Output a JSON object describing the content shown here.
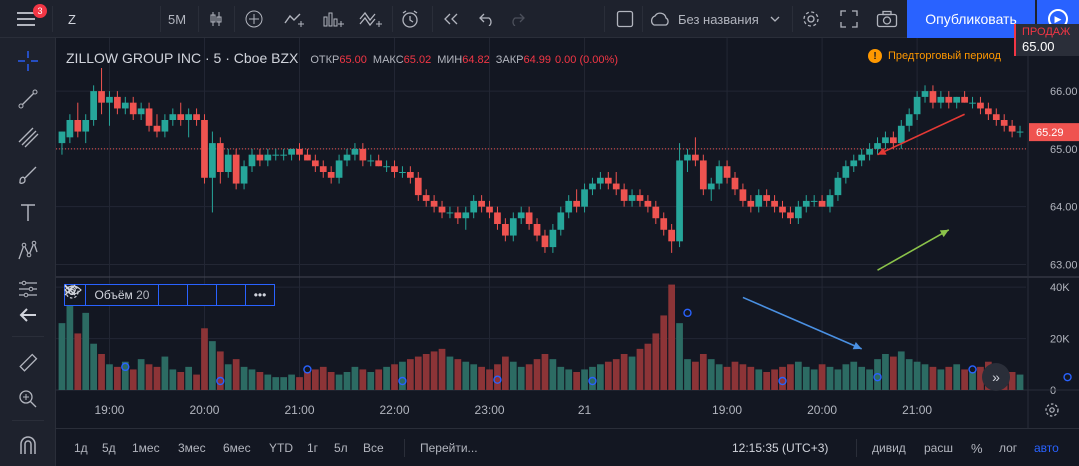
{
  "toolbar": {
    "menu_badge": "3",
    "symbol": "Z",
    "interval": "5M",
    "layout_name": "Без названия",
    "publish_label": "Опубликовать",
    "icons": [
      "menu-icon",
      "candles-icon",
      "plus-circle-icon",
      "compare-icon",
      "indicators-icon",
      "templates-icon",
      "alert-icon",
      "replay-icon",
      "undo-icon",
      "redo-icon",
      "layout-icon",
      "cloud-icon",
      "chevron-down-icon",
      "gear-icon",
      "fullscreen-icon",
      "camera-icon",
      "play-icon"
    ]
  },
  "sell": {
    "label": "ПРОДАЖ",
    "price": "65.00"
  },
  "legend": {
    "name": "ZILLOW GROUP INC · 5 · Cboe BZX",
    "open_label": "ОТКР",
    "open": "65.00",
    "high_label": "МАКС",
    "high": "65.02",
    "low_label": "МИН",
    "low": "64.82",
    "close_label": "ЗАКР",
    "close": "64.99",
    "change": "0.00 (0.00%)"
  },
  "premarket": {
    "label": "Предторговый период"
  },
  "volume_legend": {
    "label": "Объём",
    "length": "20"
  },
  "price_axis": {
    "ticks": [
      "66.00",
      "65.00",
      "64.00",
      "63.00"
    ],
    "tick_values": [
      66,
      65,
      64,
      63
    ],
    "current_price": "65.29",
    "current_value": 65.29,
    "ref_line_value": 65.0
  },
  "volume_axis": {
    "ticks": [
      "40K",
      "20K",
      "0"
    ],
    "tick_values": [
      40000,
      20000,
      0
    ]
  },
  "time_axis": {
    "ticks": [
      "19:00",
      "20:00",
      "21:00",
      "22:00",
      "23:00",
      "21",
      "19:00",
      "20:00",
      "21:00"
    ],
    "tick_index": [
      6,
      18,
      30,
      42,
      54,
      66,
      84,
      96,
      108
    ]
  },
  "chart_data": {
    "type": "candlestick",
    "ylim": [
      62.8,
      66.4
    ],
    "volume_ylim": [
      0,
      42000
    ],
    "candles": [
      {
        "o": 65.1,
        "h": 65.3,
        "l": 64.9,
        "c": 65.3,
        "v": 26000
      },
      {
        "o": 65.2,
        "h": 65.6,
        "l": 65.1,
        "c": 65.5,
        "v": 38000
      },
      {
        "o": 65.5,
        "h": 65.8,
        "l": 65.2,
        "c": 65.3,
        "v": 22000
      },
      {
        "o": 65.3,
        "h": 65.6,
        "l": 65.1,
        "c": 65.5,
        "v": 30000
      },
      {
        "o": 65.5,
        "h": 66.1,
        "l": 65.4,
        "c": 66.0,
        "v": 18000
      },
      {
        "o": 66.0,
        "h": 66.4,
        "l": 65.6,
        "c": 65.8,
        "v": 14000
      },
      {
        "o": 65.8,
        "h": 66.0,
        "l": 65.4,
        "c": 65.9,
        "v": 10000
      },
      {
        "o": 65.9,
        "h": 66.0,
        "l": 65.6,
        "c": 65.7,
        "v": 9000
      },
      {
        "o": 65.7,
        "h": 65.9,
        "l": 65.6,
        "c": 65.8,
        "v": 11000
      },
      {
        "o": 65.8,
        "h": 65.9,
        "l": 65.5,
        "c": 65.6,
        "v": 8000
      },
      {
        "o": 65.6,
        "h": 65.8,
        "l": 65.5,
        "c": 65.7,
        "v": 12000
      },
      {
        "o": 65.7,
        "h": 65.8,
        "l": 65.3,
        "c": 65.4,
        "v": 10000
      },
      {
        "o": 65.4,
        "h": 65.6,
        "l": 65.2,
        "c": 65.3,
        "v": 9000
      },
      {
        "o": 65.3,
        "h": 65.6,
        "l": 65.2,
        "c": 65.5,
        "v": 13000
      },
      {
        "o": 65.5,
        "h": 65.7,
        "l": 65.4,
        "c": 65.6,
        "v": 8000
      },
      {
        "o": 65.6,
        "h": 65.8,
        "l": 65.4,
        "c": 65.5,
        "v": 7000
      },
      {
        "o": 65.5,
        "h": 65.7,
        "l": 65.2,
        "c": 65.6,
        "v": 9000
      },
      {
        "o": 65.6,
        "h": 65.7,
        "l": 65.4,
        "c": 65.5,
        "v": 6000
      },
      {
        "o": 65.5,
        "h": 65.6,
        "l": 64.4,
        "c": 64.5,
        "v": 24000
      },
      {
        "o": 64.5,
        "h": 65.3,
        "l": 63.9,
        "c": 65.1,
        "v": 19000
      },
      {
        "o": 65.1,
        "h": 65.2,
        "l": 64.4,
        "c": 64.6,
        "v": 15000
      },
      {
        "o": 64.6,
        "h": 65.0,
        "l": 64.5,
        "c": 64.9,
        "v": 10000
      },
      {
        "o": 64.9,
        "h": 65.0,
        "l": 64.3,
        "c": 64.4,
        "v": 12000
      },
      {
        "o": 64.4,
        "h": 64.8,
        "l": 64.3,
        "c": 64.7,
        "v": 9000
      },
      {
        "o": 64.7,
        "h": 65.0,
        "l": 64.6,
        "c": 64.9,
        "v": 8000
      },
      {
        "o": 64.9,
        "h": 65.0,
        "l": 64.7,
        "c": 64.8,
        "v": 7000
      },
      {
        "o": 64.8,
        "h": 65.0,
        "l": 64.7,
        "c": 64.9,
        "v": 6000
      },
      {
        "o": 64.9,
        "h": 65.0,
        "l": 64.8,
        "c": 64.9,
        "v": 5000
      },
      {
        "o": 64.9,
        "h": 65.0,
        "l": 64.8,
        "c": 64.9,
        "v": 5000
      },
      {
        "o": 64.9,
        "h": 65.0,
        "l": 64.8,
        "c": 65.0,
        "v": 6000
      },
      {
        "o": 65.0,
        "h": 65.1,
        "l": 64.8,
        "c": 64.9,
        "v": 5000
      },
      {
        "o": 64.9,
        "h": 65.0,
        "l": 64.8,
        "c": 64.8,
        "v": 7000
      },
      {
        "o": 64.8,
        "h": 64.9,
        "l": 64.6,
        "c": 64.7,
        "v": 8000
      },
      {
        "o": 64.7,
        "h": 64.8,
        "l": 64.5,
        "c": 64.6,
        "v": 9000
      },
      {
        "o": 64.6,
        "h": 64.7,
        "l": 64.4,
        "c": 64.5,
        "v": 7000
      },
      {
        "o": 64.5,
        "h": 64.9,
        "l": 64.4,
        "c": 64.8,
        "v": 6000
      },
      {
        "o": 64.8,
        "h": 65.0,
        "l": 64.7,
        "c": 64.9,
        "v": 7000
      },
      {
        "o": 64.9,
        "h": 65.1,
        "l": 64.8,
        "c": 65.0,
        "v": 9000
      },
      {
        "o": 65.0,
        "h": 65.1,
        "l": 64.7,
        "c": 64.8,
        "v": 8000
      },
      {
        "o": 64.8,
        "h": 64.9,
        "l": 64.7,
        "c": 64.8,
        "v": 7000
      },
      {
        "o": 64.8,
        "h": 64.9,
        "l": 64.7,
        "c": 64.7,
        "v": 8000
      },
      {
        "o": 64.7,
        "h": 64.8,
        "l": 64.6,
        "c": 64.7,
        "v": 9000
      },
      {
        "o": 64.7,
        "h": 64.8,
        "l": 64.5,
        "c": 64.6,
        "v": 10000
      },
      {
        "o": 64.6,
        "h": 64.7,
        "l": 64.5,
        "c": 64.6,
        "v": 11000
      },
      {
        "o": 64.6,
        "h": 64.7,
        "l": 64.4,
        "c": 64.5,
        "v": 12000
      },
      {
        "o": 64.5,
        "h": 64.6,
        "l": 64.1,
        "c": 64.2,
        "v": 13000
      },
      {
        "o": 64.2,
        "h": 64.3,
        "l": 64.0,
        "c": 64.1,
        "v": 14000
      },
      {
        "o": 64.1,
        "h": 64.2,
        "l": 63.9,
        "c": 64.0,
        "v": 15000
      },
      {
        "o": 64.0,
        "h": 64.1,
        "l": 63.8,
        "c": 63.9,
        "v": 16000
      },
      {
        "o": 63.9,
        "h": 64.0,
        "l": 63.8,
        "c": 63.9,
        "v": 13000
      },
      {
        "o": 63.9,
        "h": 64.0,
        "l": 63.7,
        "c": 63.8,
        "v": 12000
      },
      {
        "o": 63.8,
        "h": 64.0,
        "l": 63.6,
        "c": 63.9,
        "v": 11000
      },
      {
        "o": 63.9,
        "h": 64.2,
        "l": 63.8,
        "c": 64.1,
        "v": 10000
      },
      {
        "o": 64.1,
        "h": 64.2,
        "l": 63.9,
        "c": 64.0,
        "v": 9000
      },
      {
        "o": 64.0,
        "h": 64.1,
        "l": 63.8,
        "c": 63.9,
        "v": 8000
      },
      {
        "o": 63.9,
        "h": 64.0,
        "l": 63.6,
        "c": 63.7,
        "v": 10000
      },
      {
        "o": 63.7,
        "h": 63.8,
        "l": 63.4,
        "c": 63.5,
        "v": 13000
      },
      {
        "o": 63.5,
        "h": 63.9,
        "l": 63.4,
        "c": 63.8,
        "v": 11000
      },
      {
        "o": 63.8,
        "h": 64.0,
        "l": 63.7,
        "c": 63.9,
        "v": 9000
      },
      {
        "o": 63.9,
        "h": 64.0,
        "l": 63.6,
        "c": 63.7,
        "v": 10000
      },
      {
        "o": 63.7,
        "h": 63.8,
        "l": 63.4,
        "c": 63.5,
        "v": 12000
      },
      {
        "o": 63.5,
        "h": 63.6,
        "l": 63.2,
        "c": 63.3,
        "v": 14000
      },
      {
        "o": 63.3,
        "h": 63.7,
        "l": 63.2,
        "c": 63.6,
        "v": 12000
      },
      {
        "o": 63.6,
        "h": 64.0,
        "l": 63.5,
        "c": 63.9,
        "v": 9000
      },
      {
        "o": 63.9,
        "h": 64.2,
        "l": 63.8,
        "c": 64.1,
        "v": 8000
      },
      {
        "o": 64.1,
        "h": 64.3,
        "l": 63.9,
        "c": 64.0,
        "v": 7000
      },
      {
        "o": 64.0,
        "h": 64.4,
        "l": 63.9,
        "c": 64.3,
        "v": 8000
      },
      {
        "o": 64.3,
        "h": 64.5,
        "l": 64.2,
        "c": 64.4,
        "v": 9000
      },
      {
        "o": 64.4,
        "h": 64.6,
        "l": 64.3,
        "c": 64.5,
        "v": 10000
      },
      {
        "o": 64.5,
        "h": 64.6,
        "l": 64.3,
        "c": 64.4,
        "v": 11000
      },
      {
        "o": 64.4,
        "h": 64.6,
        "l": 64.2,
        "c": 64.3,
        "v": 12000
      },
      {
        "o": 64.3,
        "h": 64.4,
        "l": 64.0,
        "c": 64.1,
        "v": 14000
      },
      {
        "o": 64.1,
        "h": 64.3,
        "l": 64.0,
        "c": 64.2,
        "v": 13000
      },
      {
        "o": 64.2,
        "h": 64.3,
        "l": 64.0,
        "c": 64.1,
        "v": 16000
      },
      {
        "o": 64.1,
        "h": 64.2,
        "l": 63.9,
        "c": 64.0,
        "v": 18000
      },
      {
        "o": 64.0,
        "h": 64.1,
        "l": 63.7,
        "c": 63.8,
        "v": 22000
      },
      {
        "o": 63.8,
        "h": 63.9,
        "l": 63.5,
        "c": 63.6,
        "v": 29000
      },
      {
        "o": 63.6,
        "h": 63.7,
        "l": 63.2,
        "c": 63.4,
        "v": 41000
      },
      {
        "o": 63.4,
        "h": 65.1,
        "l": 63.3,
        "c": 64.8,
        "v": 26000
      },
      {
        "o": 64.8,
        "h": 65.0,
        "l": 64.6,
        "c": 64.9,
        "v": 12000
      },
      {
        "o": 64.9,
        "h": 65.2,
        "l": 64.7,
        "c": 64.8,
        "v": 11000
      },
      {
        "o": 64.8,
        "h": 64.9,
        "l": 64.2,
        "c": 64.3,
        "v": 14000
      },
      {
        "o": 64.3,
        "h": 64.5,
        "l": 64.1,
        "c": 64.4,
        "v": 12000
      },
      {
        "o": 64.4,
        "h": 64.8,
        "l": 64.3,
        "c": 64.7,
        "v": 10000
      },
      {
        "o": 64.7,
        "h": 64.8,
        "l": 64.4,
        "c": 64.5,
        "v": 9000
      },
      {
        "o": 64.5,
        "h": 64.6,
        "l": 64.2,
        "c": 64.3,
        "v": 11000
      },
      {
        "o": 64.3,
        "h": 64.4,
        "l": 64.0,
        "c": 64.1,
        "v": 10000
      },
      {
        "o": 64.1,
        "h": 64.2,
        "l": 63.9,
        "c": 64.0,
        "v": 9000
      },
      {
        "o": 64.0,
        "h": 64.3,
        "l": 63.9,
        "c": 64.2,
        "v": 8000
      },
      {
        "o": 64.2,
        "h": 64.3,
        "l": 64.0,
        "c": 64.1,
        "v": 7000
      },
      {
        "o": 64.1,
        "h": 64.2,
        "l": 63.9,
        "c": 64.0,
        "v": 8000
      },
      {
        "o": 64.0,
        "h": 64.1,
        "l": 63.8,
        "c": 63.9,
        "v": 9000
      },
      {
        "o": 63.9,
        "h": 64.0,
        "l": 63.7,
        "c": 63.8,
        "v": 10000
      },
      {
        "o": 63.8,
        "h": 64.1,
        "l": 63.7,
        "c": 64.0,
        "v": 11000
      },
      {
        "o": 64.0,
        "h": 64.2,
        "l": 63.9,
        "c": 64.1,
        "v": 9000
      },
      {
        "o": 64.1,
        "h": 64.2,
        "l": 64.0,
        "c": 64.1,
        "v": 8000
      },
      {
        "o": 64.1,
        "h": 64.2,
        "l": 64.0,
        "c": 64.0,
        "v": 10000
      },
      {
        "o": 64.0,
        "h": 64.3,
        "l": 63.9,
        "c": 64.2,
        "v": 9000
      },
      {
        "o": 64.2,
        "h": 64.6,
        "l": 64.1,
        "c": 64.5,
        "v": 8000
      },
      {
        "o": 64.5,
        "h": 64.8,
        "l": 64.4,
        "c": 64.7,
        "v": 10000
      },
      {
        "o": 64.7,
        "h": 64.9,
        "l": 64.6,
        "c": 64.8,
        "v": 11000
      },
      {
        "o": 64.8,
        "h": 65.0,
        "l": 64.7,
        "c": 64.9,
        "v": 9000
      },
      {
        "o": 64.9,
        "h": 65.1,
        "l": 64.8,
        "c": 65.0,
        "v": 8000
      },
      {
        "o": 65.0,
        "h": 65.2,
        "l": 64.9,
        "c": 65.1,
        "v": 12000
      },
      {
        "o": 65.1,
        "h": 65.3,
        "l": 65.0,
        "c": 65.2,
        "v": 14000
      },
      {
        "o": 65.2,
        "h": 65.3,
        "l": 65.0,
        "c": 65.1,
        "v": 13000
      },
      {
        "o": 65.1,
        "h": 65.5,
        "l": 65.0,
        "c": 65.4,
        "v": 15000
      },
      {
        "o": 65.4,
        "h": 65.7,
        "l": 65.3,
        "c": 65.6,
        "v": 12000
      },
      {
        "o": 65.6,
        "h": 66.0,
        "l": 65.5,
        "c": 65.9,
        "v": 11000
      },
      {
        "o": 65.9,
        "h": 66.1,
        "l": 65.8,
        "c": 66.0,
        "v": 10000
      },
      {
        "o": 66.0,
        "h": 66.1,
        "l": 65.7,
        "c": 65.8,
        "v": 9000
      },
      {
        "o": 65.8,
        "h": 66.0,
        "l": 65.7,
        "c": 65.9,
        "v": 8000
      },
      {
        "o": 65.9,
        "h": 66.0,
        "l": 65.7,
        "c": 65.8,
        "v": 9000
      },
      {
        "o": 65.8,
        "h": 65.9,
        "l": 65.7,
        "c": 65.9,
        "v": 10000
      },
      {
        "o": 65.9,
        "h": 66.0,
        "l": 65.8,
        "c": 65.8,
        "v": 8000
      },
      {
        "o": 65.8,
        "h": 65.9,
        "l": 65.7,
        "c": 65.8,
        "v": 7000
      },
      {
        "o": 65.8,
        "h": 65.9,
        "l": 65.6,
        "c": 65.7,
        "v": 9000
      },
      {
        "o": 65.7,
        "h": 65.8,
        "l": 65.5,
        "c": 65.6,
        "v": 11000
      },
      {
        "o": 65.6,
        "h": 65.7,
        "l": 65.4,
        "c": 65.5,
        "v": 10000
      },
      {
        "o": 65.5,
        "h": 65.6,
        "l": 65.3,
        "c": 65.4,
        "v": 8000
      },
      {
        "o": 65.4,
        "h": 65.5,
        "l": 65.2,
        "c": 65.3,
        "v": 7000
      },
      {
        "o": 65.3,
        "h": 65.4,
        "l": 65.2,
        "c": 65.3,
        "v": 6000
      }
    ],
    "markers": [
      {
        "i": 8,
        "v": 9000
      },
      {
        "i": 20,
        "v": 3500
      },
      {
        "i": 31,
        "v": 8000
      },
      {
        "i": 43,
        "v": 3500
      },
      {
        "i": 55,
        "v": 4000
      },
      {
        "i": 67,
        "v": 3500
      },
      {
        "i": 79,
        "v": 30000
      },
      {
        "i": 91,
        "v": 3500
      },
      {
        "i": 103,
        "v": 5000
      },
      {
        "i": 115,
        "v": 8000
      },
      {
        "i": 127,
        "v": 5000
      },
      {
        "i": 139,
        "v": 1500
      }
    ],
    "arrows": [
      {
        "color": "#e53935",
        "from": [
          114,
          65.6
        ],
        "to": [
          103,
          64.9
        ]
      },
      {
        "color": "#8bc34a",
        "from": [
          103,
          62.9
        ],
        "to": [
          112,
          63.6
        ]
      },
      {
        "color": "#e53935",
        "from": [
          160,
          65.7
        ],
        "to": [
          164,
          64.8
        ]
      },
      {
        "color": "#8bc34a",
        "from": [
          152,
          62.8
        ],
        "to": [
          170,
          63.4
        ]
      },
      {
        "color": "#4a90e2",
        "from": [
          86,
          36000
        ],
        "to": [
          101,
          16000
        ],
        "pane": "volume"
      },
      {
        "color": "#4a90e2",
        "from": [
          146,
          36000
        ],
        "to": [
          162,
          21000
        ],
        "pane": "volume"
      }
    ]
  },
  "bottom": {
    "ranges": [
      "1д",
      "5д",
      "1мес",
      "3мес",
      "6мес",
      "YTD",
      "1г",
      "5л",
      "Все"
    ],
    "goto": "Перейти...",
    "clock": "12:15:35 (UTC+3)",
    "options": [
      "дивид",
      "расш",
      "%",
      "лог",
      "авто"
    ]
  },
  "colors": {
    "up": "#26a69a",
    "down": "#ef5350",
    "vol_up": "#2c6b63",
    "vol_down": "#8c3437",
    "accent": "#2962ff",
    "bg": "#131722",
    "grid": "#232734"
  }
}
